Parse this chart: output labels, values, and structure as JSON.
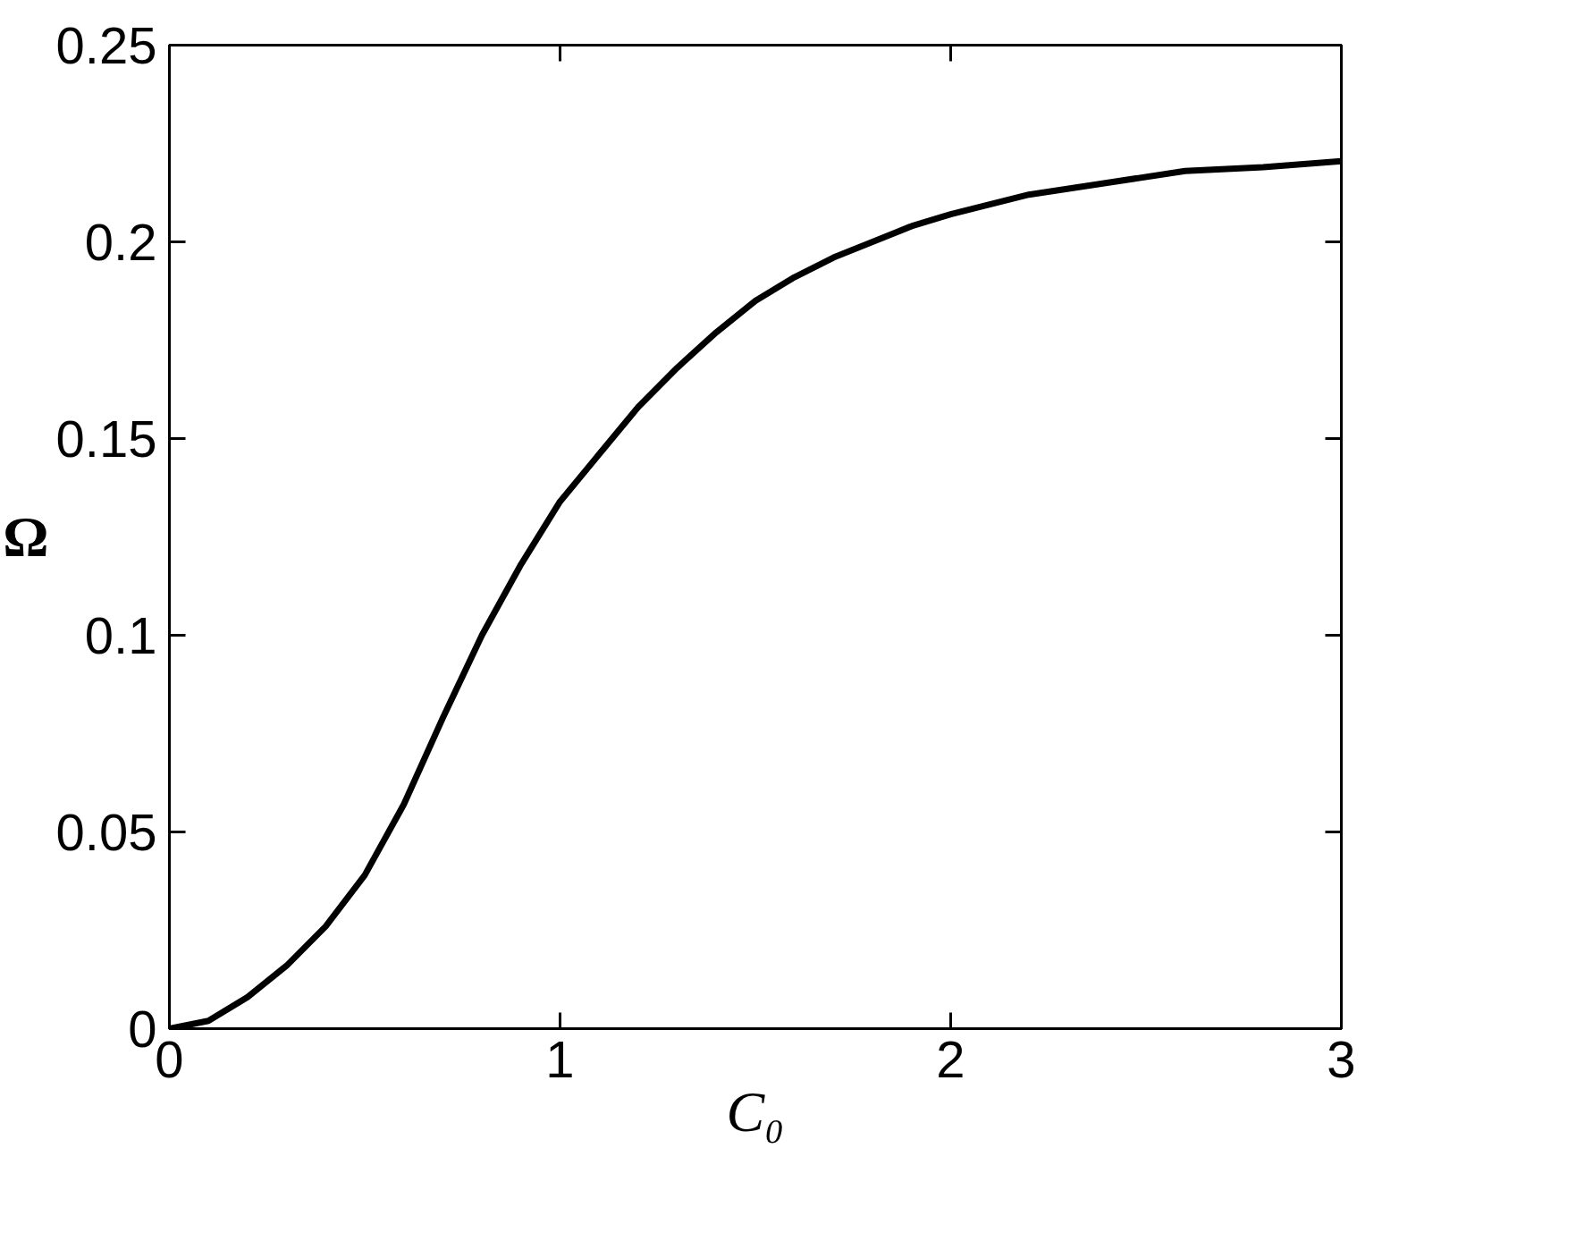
{
  "chart_data": {
    "type": "line",
    "xlabel": "C₀",
    "ylabel": "Ω",
    "x": [
      0,
      0.1,
      0.2,
      0.3,
      0.4,
      0.5,
      0.6,
      0.7,
      0.8,
      0.9,
      1.0,
      1.1,
      1.2,
      1.3,
      1.4,
      1.5,
      1.6,
      1.7,
      1.8,
      1.9,
      2.0,
      2.2,
      2.4,
      2.6,
      2.8,
      3.0
    ],
    "series": [
      {
        "color": "#000000",
        "values": [
          0,
          0.002,
          0.008,
          0.016,
          0.026,
          0.039,
          0.057,
          0.079,
          0.1,
          0.118,
          0.134,
          0.146,
          0.158,
          0.168,
          0.177,
          0.185,
          0.191,
          0.196,
          0.2,
          0.204,
          0.207,
          0.212,
          0.215,
          0.218,
          0.219,
          0.2205
        ]
      }
    ],
    "xlim": [
      0,
      3
    ],
    "ylim": [
      0,
      0.25
    ],
    "xticks": [
      0,
      1,
      2,
      3
    ],
    "yticks": [
      0,
      {
        "value": 0.05,
        "label": "0.05"
      },
      {
        "value": 0.1,
        "label": "0.1"
      },
      {
        "value": 0.15,
        "label": "0.15"
      },
      {
        "value": 0.2,
        "label": "0.2"
      },
      {
        "value": 0.25,
        "label": "0.25"
      }
    ],
    "grid": false,
    "marker": "none",
    "line_style": "solid"
  }
}
